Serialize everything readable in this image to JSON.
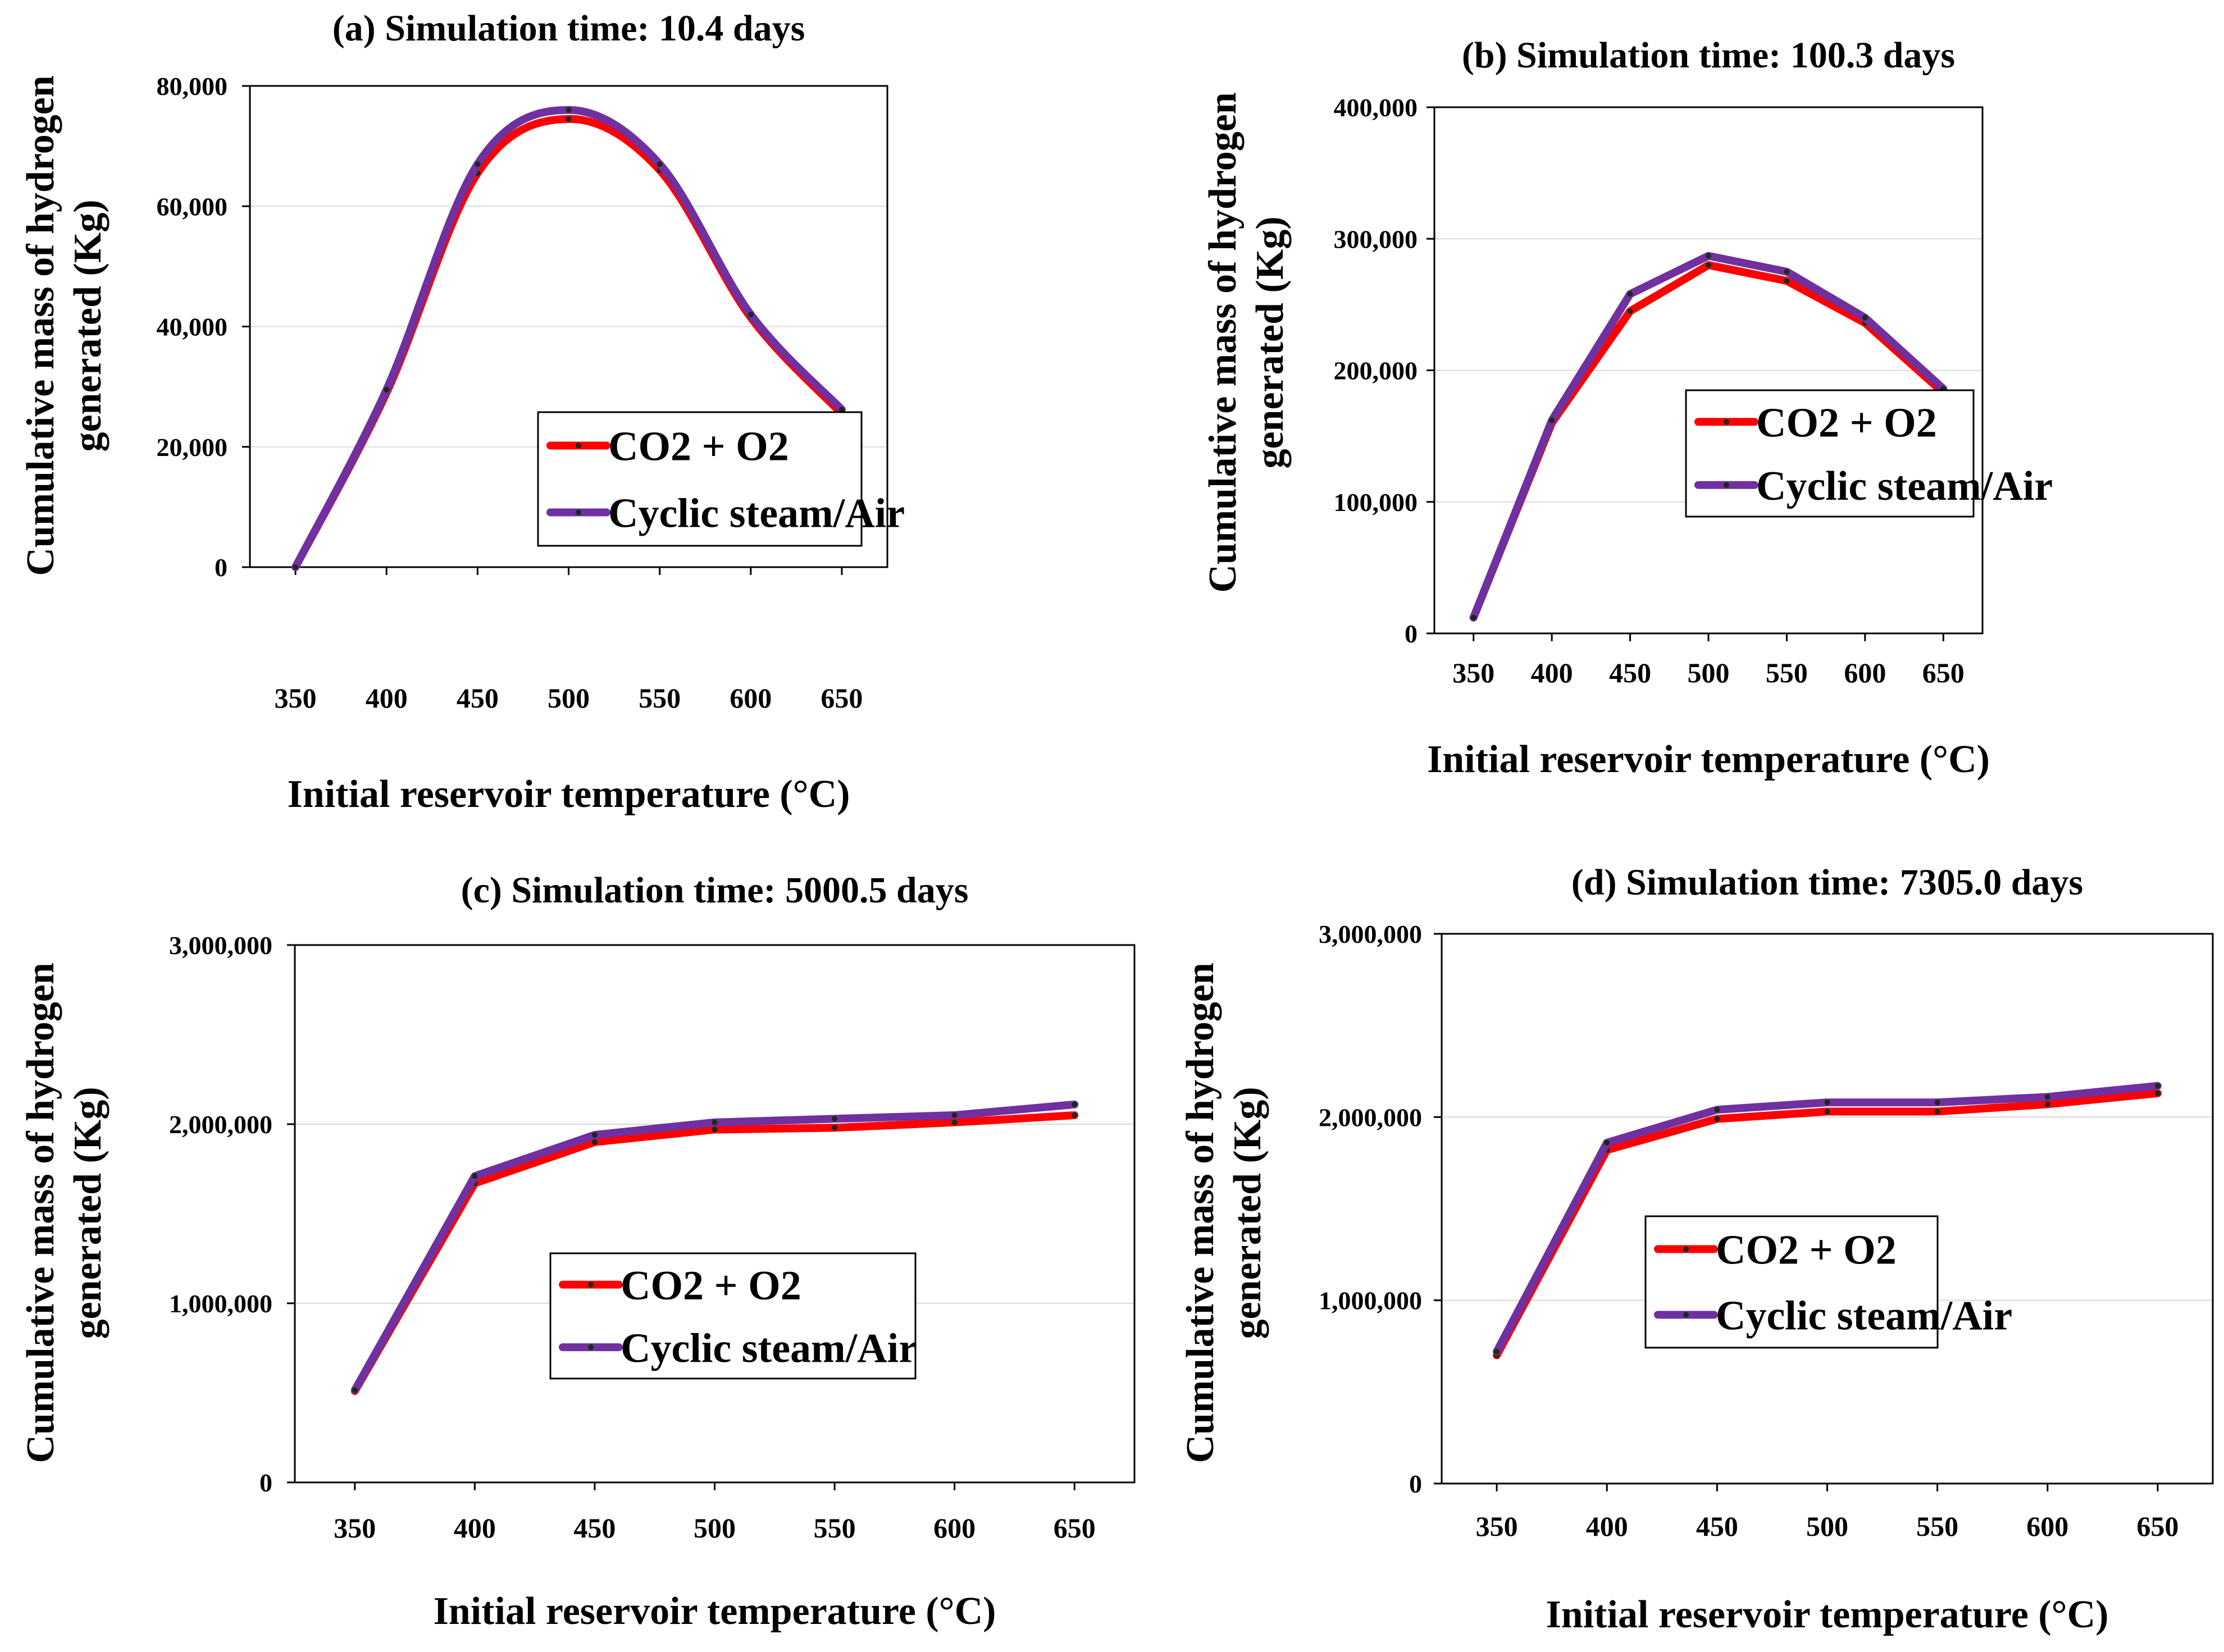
{
  "chart_data": [
    {
      "type": "line",
      "title": "(a) Simulation time: 10.4 days",
      "xlabel": "Initial reservoir temperature (°C)",
      "ylabel": "Cumulative mass of hydrogen generated (Kg)",
      "ylabel_lines": [
        "Cumulative mass of hydrogen",
        "generated (Kg)"
      ],
      "x": [
        350,
        400,
        450,
        500,
        550,
        600,
        650
      ],
      "xlim": [
        325,
        675
      ],
      "ylim": [
        0,
        80000
      ],
      "yticks": [
        0,
        20000,
        40000,
        60000,
        80000
      ],
      "ytick_labels": [
        "0",
        "20,000",
        "40,000",
        "60,000",
        "80,000"
      ],
      "smooth": true,
      "grid": "horizontal",
      "legend_position": "center",
      "series": [
        {
          "name": "CO2 + O2",
          "color": "#ff0000",
          "values": [
            0,
            29000,
            65500,
            74500,
            66000,
            41500,
            25500
          ]
        },
        {
          "name": "Cyclic steam/Air",
          "color": "#7030a0",
          "values": [
            0,
            29500,
            67000,
            76000,
            67000,
            42000,
            26200
          ]
        }
      ]
    },
    {
      "type": "line",
      "title": "(b) Simulation time: 100.3 days",
      "xlabel": "Initial reservoir temperature (°C)",
      "ylabel": "Cumulative mass of hydrogen generated (Kg)",
      "ylabel_lines": [
        "Cumulative mass of hydrogen",
        "generated (Kg)"
      ],
      "x": [
        350,
        400,
        450,
        500,
        550,
        600,
        650
      ],
      "xlim": [
        325,
        675
      ],
      "ylim": [
        0,
        400000
      ],
      "yticks": [
        0,
        100000,
        200000,
        300000,
        400000
      ],
      "ytick_labels": [
        "0",
        "100,000",
        "200,000",
        "300,000",
        "400,000"
      ],
      "smooth": false,
      "grid": "horizontal",
      "legend_position": "center-right",
      "series": [
        {
          "name": "CO2 + O2",
          "color": "#ff0000",
          "values": [
            12000,
            160000,
            245000,
            280000,
            268000,
            236000,
            183000
          ]
        },
        {
          "name": "Cyclic steam/Air",
          "color": "#7030a0",
          "values": [
            12000,
            162000,
            258000,
            287000,
            275000,
            240000,
            186000
          ]
        }
      ]
    },
    {
      "type": "line",
      "title": "(c) Simulation time: 5000.5 days",
      "xlabel": "Initial reservoir temperature (°C)",
      "ylabel": "Cumulative mass of hydrogen generated (Kg)",
      "ylabel_lines": [
        "Cumulative mass of hydrogen",
        "generated (Kg)"
      ],
      "x": [
        350,
        400,
        450,
        500,
        550,
        600,
        650
      ],
      "xlim": [
        325,
        675
      ],
      "ylim": [
        0,
        3000000
      ],
      "yticks": [
        0,
        1000000,
        2000000,
        3000000
      ],
      "ytick_labels": [
        "0",
        "1,000,000",
        "2,000,000",
        "3,000,000"
      ],
      "smooth": false,
      "grid": "horizontal",
      "legend_position": "center",
      "series": [
        {
          "name": "CO2 + O2",
          "color": "#ff0000",
          "values": [
            510000,
            1670000,
            1900000,
            1970000,
            1980000,
            2010000,
            2050000
          ]
        },
        {
          "name": "Cyclic steam/Air",
          "color": "#7030a0",
          "values": [
            515000,
            1710000,
            1940000,
            2010000,
            2030000,
            2050000,
            2110000
          ]
        }
      ]
    },
    {
      "type": "line",
      "title": "(d) Simulation time: 7305.0 days",
      "xlabel": "Initial reservoir temperature (°C)",
      "ylabel": "Cumulative mass of hydrogen generated (Kg)",
      "ylabel_lines": [
        "Cumulative mass of hydrogen",
        "generated (Kg)"
      ],
      "x": [
        350,
        400,
        450,
        500,
        550,
        600,
        650
      ],
      "xlim": [
        325,
        675
      ],
      "ylim": [
        0,
        3000000
      ],
      "yticks": [
        0,
        1000000,
        2000000,
        3000000
      ],
      "ytick_labels": [
        "0",
        "1,000,000",
        "2,000,000",
        "3,000,000"
      ],
      "smooth": false,
      "grid": "horizontal",
      "legend_position": "center",
      "series": [
        {
          "name": "CO2 + O2",
          "color": "#ff0000",
          "values": [
            700000,
            1820000,
            1990000,
            2030000,
            2030000,
            2070000,
            2130000
          ]
        },
        {
          "name": "Cyclic steam/Air",
          "color": "#7030a0",
          "values": [
            720000,
            1860000,
            2040000,
            2080000,
            2080000,
            2110000,
            2170000
          ]
        }
      ]
    }
  ]
}
